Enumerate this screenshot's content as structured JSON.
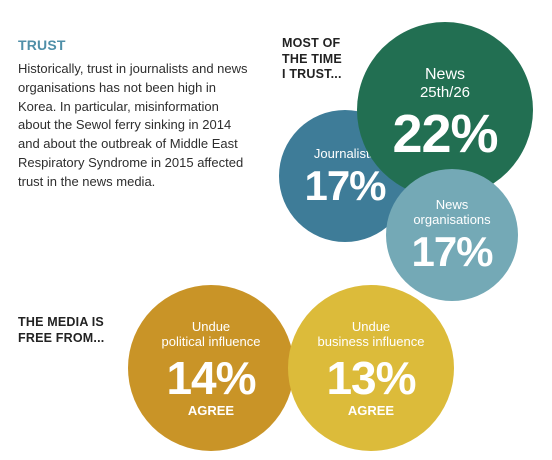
{
  "trust": {
    "heading": "TRUST",
    "body": "Historically, trust in journalists and news organisations has not been high in Korea. In particular, misinformation about the Sewol ferry sinking in 2014 and about the outbreak of Middle East Respiratory Syndrome in 2015 affected trust in the news media."
  },
  "most_of_the_time": {
    "label_line1": "MOST OF",
    "label_line2": "THE TIME",
    "label_line3": "I TRUST...",
    "items": [
      {
        "label": "News",
        "rank": "25th/26",
        "value": "22%",
        "color": "#226f52"
      },
      {
        "label": "Journalists",
        "value": "17%",
        "color": "#3e7c98"
      },
      {
        "label_line1": "News",
        "label_line2": "organisations",
        "value": "17%",
        "color": "#74a9b6"
      }
    ]
  },
  "media_free": {
    "label_line1": "THE MEDIA IS",
    "label_line2": "FREE FROM...",
    "items": [
      {
        "label_line1": "Undue",
        "label_line2": "political influence",
        "value": "14%",
        "suffix": "AGREE",
        "color": "#c99427"
      },
      {
        "label_line1": "Undue",
        "label_line2": "business influence",
        "value": "13%",
        "suffix": "AGREE",
        "color": "#dcbb3a"
      }
    ]
  }
}
